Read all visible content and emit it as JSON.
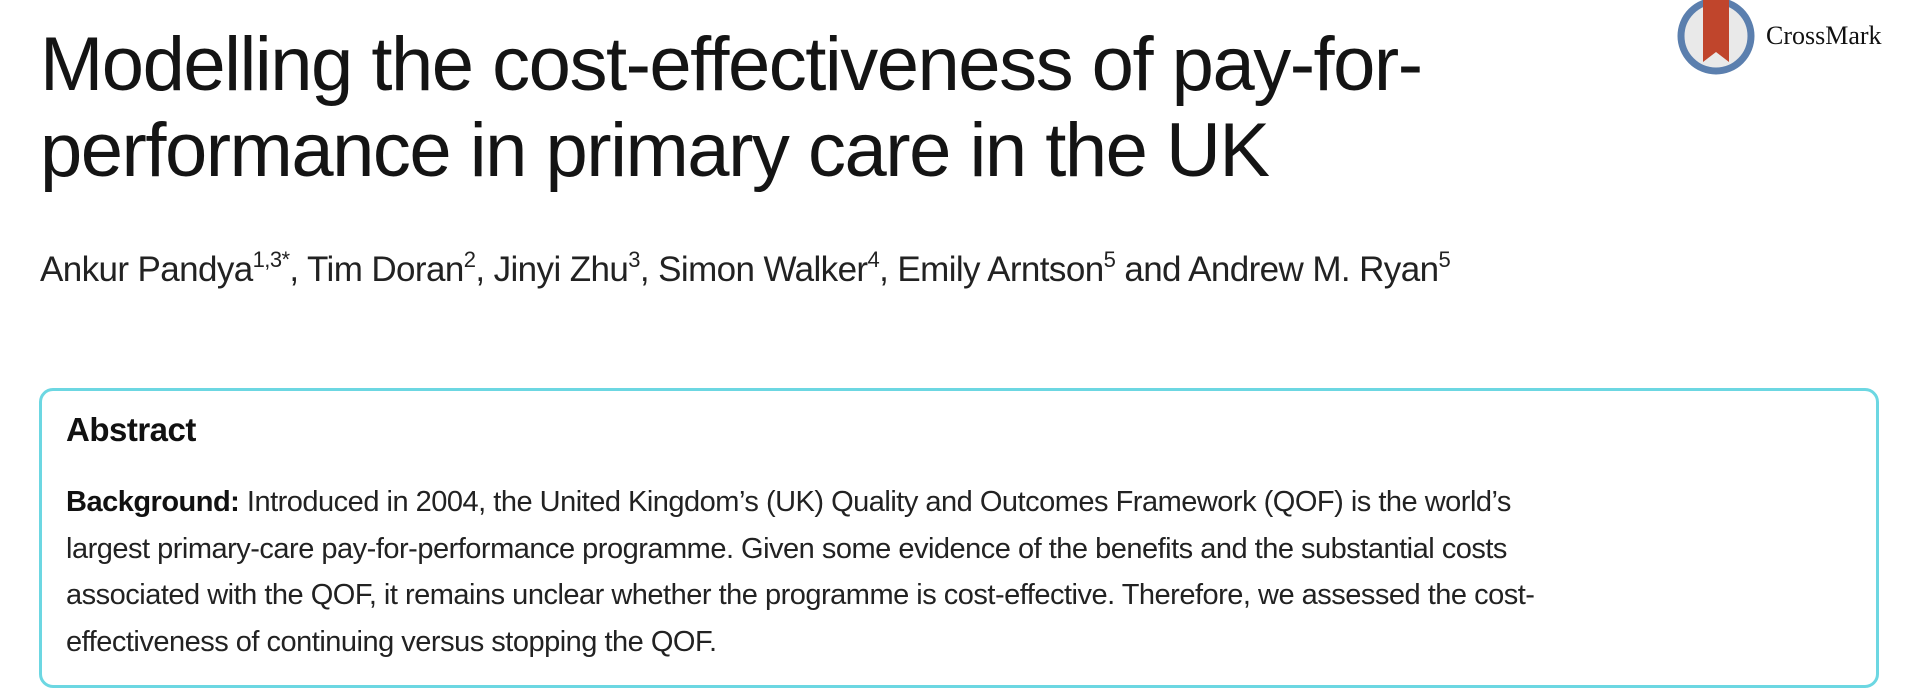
{
  "title_lines": [
    "Modelling the cost-effectiveness of pay-for-",
    "performance in primary care in the UK"
  ],
  "authors": [
    {
      "name": "Ankur Pandya",
      "aff": "1,3*"
    },
    {
      "name": "Tim Doran",
      "aff": "2"
    },
    {
      "name": "Jinyi Zhu",
      "aff": "3"
    },
    {
      "name": "Simon Walker",
      "aff": "4"
    },
    {
      "name": "Emily Arntson",
      "aff": "5"
    },
    {
      "name": "Andrew M. Ryan",
      "aff": "5"
    }
  ],
  "author_separators": [
    ", ",
    ", ",
    ", ",
    ", ",
    " and "
  ],
  "crossmark": {
    "label": "CrossMark"
  },
  "abstract": {
    "heading": "Abstract",
    "section_label": "Background:",
    "lines": [
      " Introduced in 2004, the United Kingdom’s (UK) Quality and Outcomes Framework (QOF) is the world’s",
      "largest primary-care pay-for-performance programme. Given some evidence of the benefits and the substantial costs",
      "associated with the QOF, it remains unclear whether the programme is cost-effective. Therefore, we assessed the cost-",
      "effectiveness of continuing versus stopping the QOF."
    ]
  },
  "colors": {
    "abstract_border": "#6cd7e2",
    "crossmark_ring": "#5b7fae",
    "crossmark_ribbon": "#c0452c"
  }
}
